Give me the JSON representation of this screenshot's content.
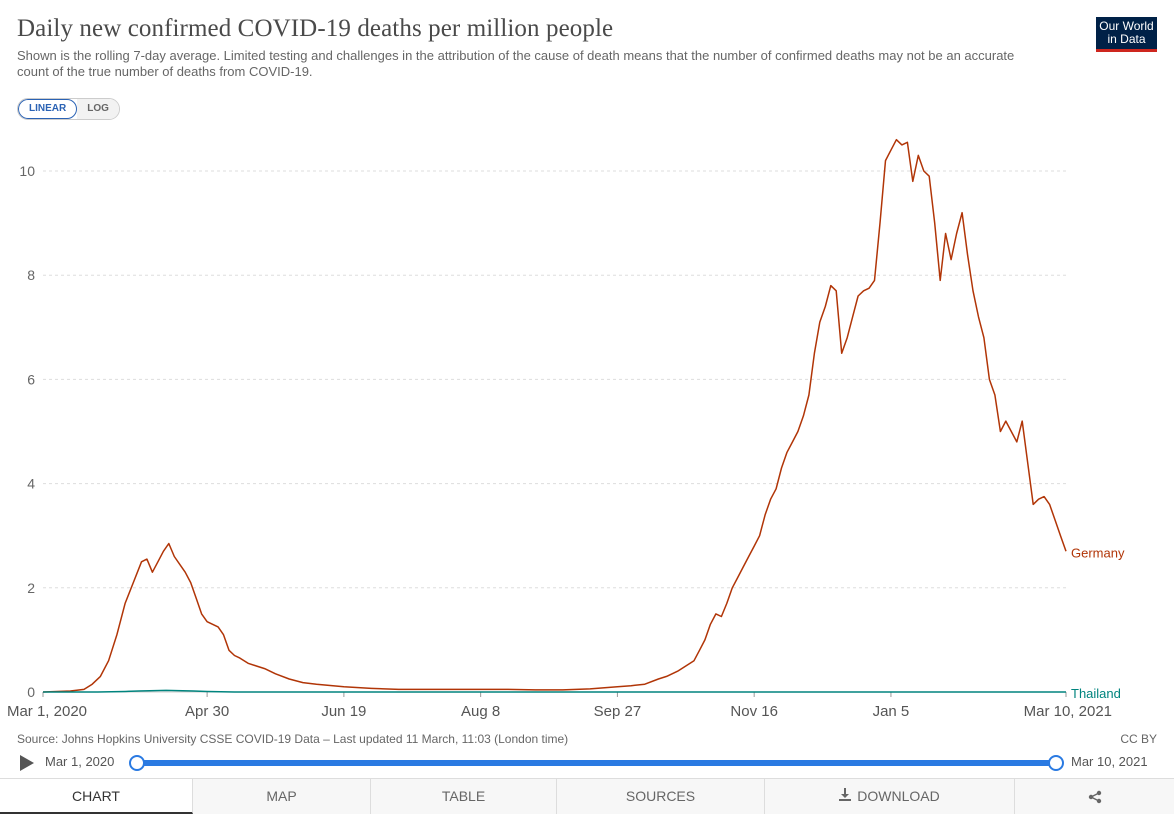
{
  "header": {
    "title": "Daily new confirmed COVID-19 deaths per million people",
    "subtitle": "Shown is the rolling 7-day average. Limited testing and challenges in the attribution of the cause of death means that the number of confirmed deaths may not be an accurate count of the true number of deaths from COVID-19.",
    "logo_line1": "Our World",
    "logo_line2": "in Data"
  },
  "scale_toggle": {
    "linear": "LINEAR",
    "log": "LOG",
    "selected": "LINEAR"
  },
  "chart_data": {
    "type": "line",
    "title": "Daily new confirmed COVID-19 deaths per million people",
    "xlabel": "",
    "ylabel": "",
    "ylim": [
      0,
      10.6
    ],
    "y_ticks": [
      "0",
      "2",
      "4",
      "6",
      "8",
      "10"
    ],
    "x_ticks": [
      "Mar 1, 2020",
      "Apr 30",
      "Jun 19",
      "Aug 8",
      "Sep 27",
      "Nov 16",
      "Jan 5",
      "Mar 10, 2021"
    ],
    "x_tick_days": [
      0,
      60,
      110,
      160,
      210,
      260,
      310,
      374
    ],
    "x_range_days": [
      0,
      374
    ],
    "grid": "horizontal-dashed",
    "series": [
      {
        "name": "Germany",
        "color": "#b13507",
        "x_days": [
          0,
          10,
          15,
          18,
          21,
          24,
          27,
          30,
          33,
          36,
          38,
          40,
          42,
          44,
          46,
          48,
          50,
          52,
          54,
          56,
          58,
          60,
          62,
          64,
          66,
          68,
          70,
          72,
          75,
          78,
          81,
          85,
          90,
          95,
          100,
          110,
          120,
          130,
          140,
          150,
          160,
          170,
          180,
          190,
          200,
          210,
          215,
          220,
          225,
          228,
          232,
          235,
          238,
          240,
          242,
          244,
          246,
          248,
          250,
          252,
          254,
          256,
          258,
          260,
          262,
          264,
          266,
          268,
          270,
          272,
          274,
          276,
          278,
          280,
          282,
          284,
          286,
          288,
          290,
          292,
          294,
          296,
          298,
          300,
          302,
          304,
          306,
          308,
          310,
          312,
          314,
          316,
          318,
          320,
          322,
          324,
          326,
          328,
          330,
          332,
          334,
          336,
          338,
          340,
          342,
          344,
          346,
          348,
          350,
          352,
          354,
          356,
          358,
          360,
          362,
          364,
          366,
          368,
          370,
          372,
          374
        ],
        "values": [
          0,
          0.02,
          0.05,
          0.15,
          0.3,
          0.6,
          1.1,
          1.7,
          2.1,
          2.5,
          2.55,
          2.3,
          2.5,
          2.7,
          2.85,
          2.6,
          2.45,
          2.3,
          2.1,
          1.8,
          1.5,
          1.35,
          1.3,
          1.25,
          1.1,
          0.8,
          0.7,
          0.65,
          0.55,
          0.5,
          0.45,
          0.35,
          0.25,
          0.18,
          0.15,
          0.1,
          0.07,
          0.05,
          0.05,
          0.05,
          0.05,
          0.05,
          0.04,
          0.04,
          0.06,
          0.1,
          0.12,
          0.15,
          0.25,
          0.3,
          0.4,
          0.5,
          0.6,
          0.8,
          1.0,
          1.3,
          1.5,
          1.45,
          1.7,
          2.0,
          2.2,
          2.4,
          2.6,
          2.8,
          3.0,
          3.4,
          3.7,
          3.9,
          4.3,
          4.6,
          4.8,
          5.0,
          5.3,
          5.7,
          6.5,
          7.1,
          7.4,
          7.8,
          7.7,
          6.5,
          6.8,
          7.2,
          7.6,
          7.7,
          7.75,
          7.9,
          9.0,
          10.2,
          10.4,
          10.6,
          10.5,
          10.55,
          9.8,
          10.3,
          10.0,
          9.9,
          9.0,
          7.9,
          8.8,
          8.3,
          8.8,
          9.2,
          8.4,
          7.7,
          7.2,
          6.8,
          6.0,
          5.7,
          5.0,
          5.2,
          5.0,
          4.8,
          5.2,
          4.4,
          3.6,
          3.7,
          3.75,
          3.6,
          3.3,
          3.0,
          2.7
        ]
      },
      {
        "name": "Thailand",
        "color": "#00847e",
        "x_days": [
          0,
          20,
          30,
          35,
          45,
          55,
          60,
          70,
          100,
          200,
          300,
          374
        ],
        "values": [
          0,
          0,
          0.01,
          0.02,
          0.03,
          0.02,
          0.01,
          0,
          0,
          0,
          0,
          0
        ]
      }
    ]
  },
  "footer": {
    "source": "Source: Johns Hopkins University CSSE COVID-19 Data – Last updated 11 March, 11:03 (London time)",
    "license": "CC BY"
  },
  "timeline": {
    "start_label": "Mar 1, 2020",
    "end_label": "Mar 10, 2021"
  },
  "tabs": {
    "chart": "CHART",
    "map": "MAP",
    "table": "TABLE",
    "sources": "SOURCES",
    "download": "DOWNLOAD"
  },
  "icons": {
    "play": "play-icon",
    "download": "download-icon",
    "share": "share-icon"
  }
}
